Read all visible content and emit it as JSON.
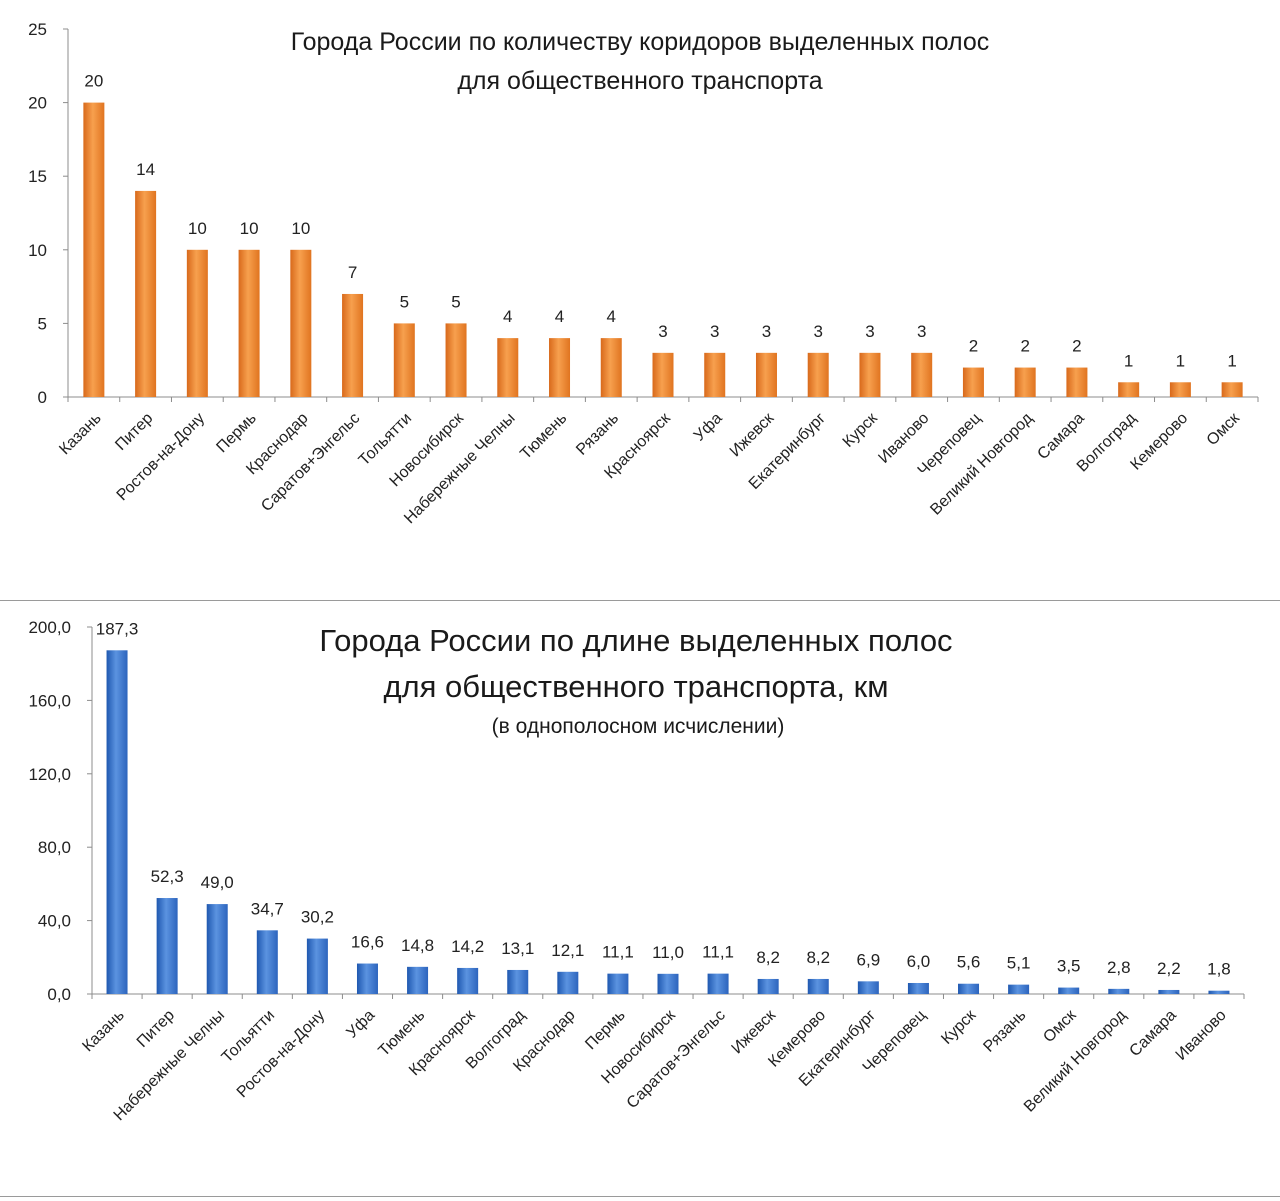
{
  "chart_data": [
    {
      "type": "bar",
      "title": "Города России по количеству коридоров выделенных полос",
      "title_line2": "для общественного  транспорта",
      "categories": [
        "Казань",
        "Питер",
        "Ростов-на-Дону",
        "Пермь",
        "Краснодар",
        "Саратов+Энгельс",
        "Тольятти",
        "Новосибирск",
        "Набережные Челны",
        "Тюмень",
        "Рязань",
        "Красноярск",
        "Уфа",
        "Ижевск",
        "Екатеринбург",
        "Курск",
        "Иваново",
        "Череповец",
        "Великий Новгород",
        "Самара",
        "Волгоград",
        "Кемерово",
        "Омск"
      ],
      "values": [
        20,
        14,
        10,
        10,
        10,
        7,
        5,
        5,
        4,
        4,
        4,
        3,
        3,
        3,
        3,
        3,
        3,
        2,
        2,
        2,
        1,
        1,
        1
      ],
      "value_labels": [
        "20",
        "14",
        "10",
        "10",
        "10",
        "7",
        "5",
        "5",
        "4",
        "4",
        "4",
        "3",
        "3",
        "3",
        "3",
        "3",
        "3",
        "2",
        "2",
        "2",
        "1",
        "1",
        "1"
      ],
      "y_ticks": [
        "0",
        "5",
        "10",
        "15",
        "20",
        "25"
      ],
      "y_tick_values": [
        0,
        5,
        10,
        15,
        20,
        25
      ],
      "ylim": [
        0,
        25
      ],
      "color": "#f08a2c",
      "grid": false,
      "legend": "none"
    },
    {
      "type": "bar",
      "title": "Города России по длине выделенных полос",
      "title_line2": "для общественного транспорта, км",
      "subtitle": "(в однополосном исчислении)",
      "categories": [
        "Казань",
        "Питер",
        "Набережные Челны",
        "Тольятти",
        "Ростов-на-Дону",
        "Уфа",
        "Тюмень",
        "Красноярск",
        "Волгоград",
        "Краснодар",
        "Пермь",
        "Новосибирск",
        "Саратов+Энгельс",
        "Ижевск",
        "Кемерово",
        "Екатеринбург",
        "Череповец",
        "Курск",
        "Рязань",
        "Омск",
        "Великий Новгород",
        "Самара",
        "Иваново"
      ],
      "values": [
        187.3,
        52.3,
        49.0,
        34.7,
        30.2,
        16.6,
        14.8,
        14.2,
        13.1,
        12.1,
        11.1,
        11.0,
        11.1,
        8.2,
        8.2,
        6.9,
        6.0,
        5.6,
        5.1,
        3.5,
        2.8,
        2.2,
        1.8
      ],
      "value_labels": [
        "187,3",
        "52,3",
        "49,0",
        "34,7",
        "30,2",
        "16,6",
        "14,8",
        "14,2",
        "13,1",
        "12,1",
        "11,1",
        "11,0",
        "11,1",
        "8,2",
        "8,2",
        "6,9",
        "6,0",
        "5,6",
        "5,1",
        "3,5",
        "2,8",
        "2,2",
        "1,8"
      ],
      "y_ticks": [
        "0,0",
        "40,0",
        "80,0",
        "120,0",
        "160,0",
        "200,0"
      ],
      "y_tick_values": [
        0,
        40,
        80,
        120,
        160,
        200
      ],
      "ylim": [
        0,
        200
      ],
      "color": "#3f78cc",
      "grid": false,
      "legend": "none"
    }
  ]
}
